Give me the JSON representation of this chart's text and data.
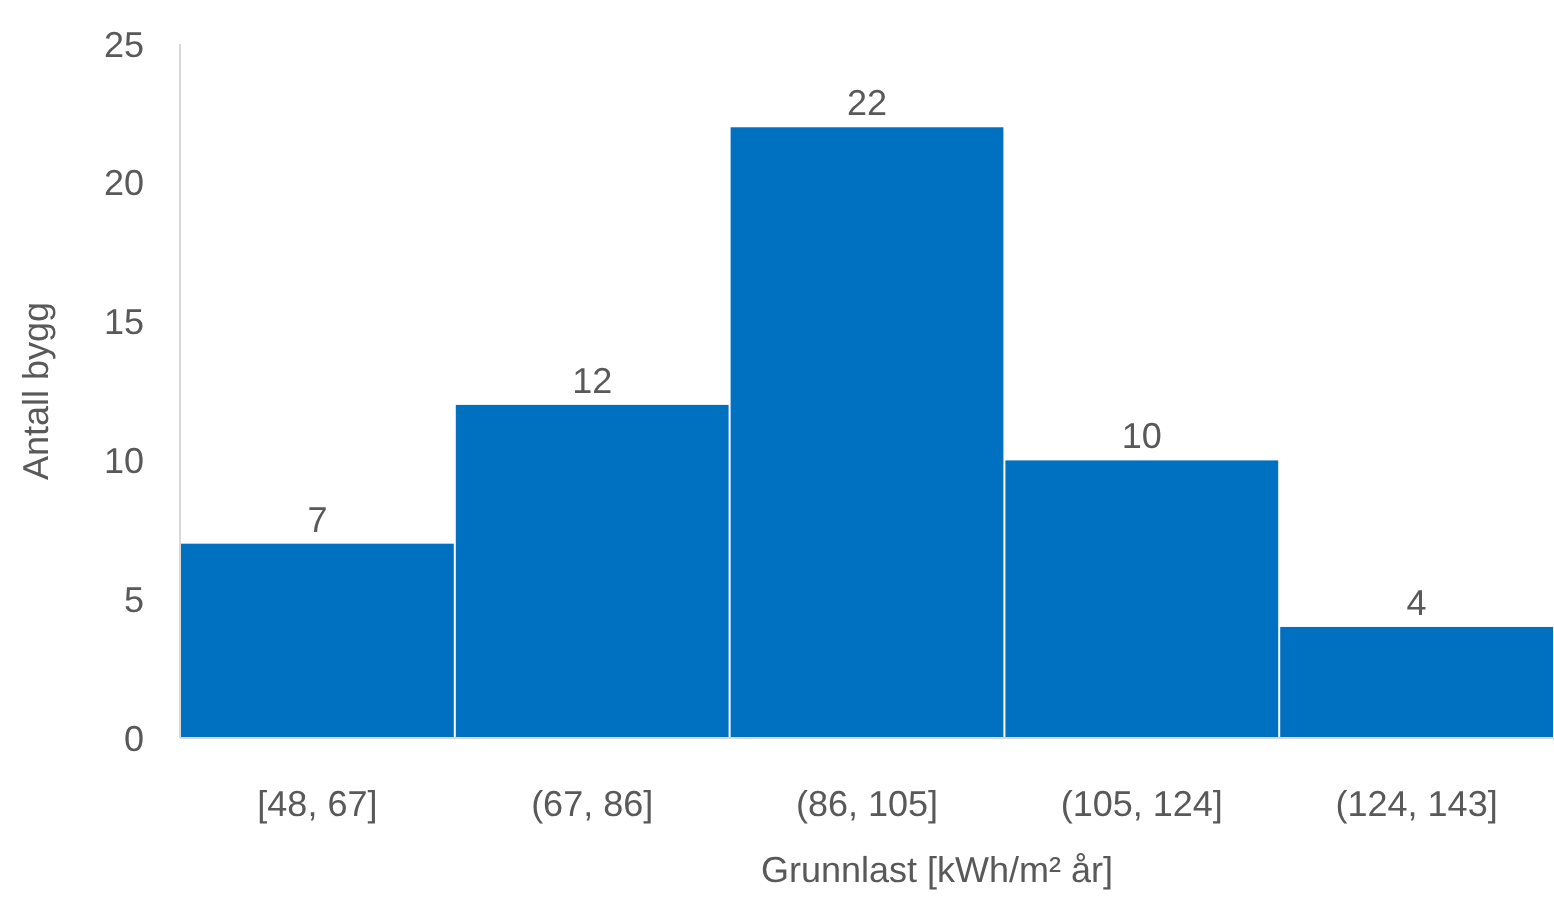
{
  "chart_data": {
    "type": "bar",
    "xlabel": "Grunnlast [kWh/m² år]",
    "ylabel": "Antall bygg",
    "categories": [
      "[48, 67]",
      "(67, 86]",
      "(86, 105]",
      "(105, 124]",
      "(124, 143]"
    ],
    "values": [
      7,
      12,
      22,
      10,
      4
    ],
    "color": "#0070c0",
    "ylim": [
      0,
      25
    ],
    "yticks": [
      0,
      5,
      10,
      15,
      20,
      25
    ],
    "data_labels": true
  }
}
